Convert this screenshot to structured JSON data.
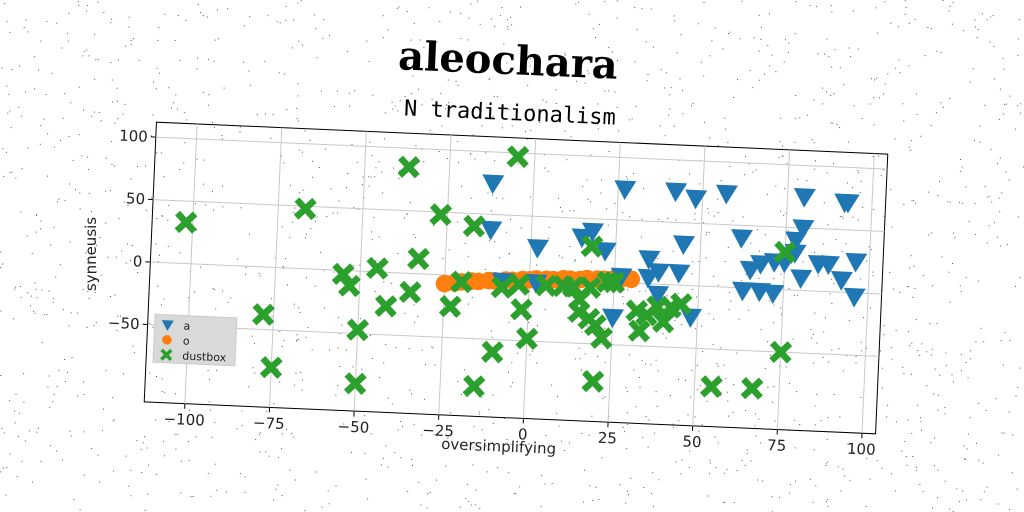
{
  "chart_data": {
    "type": "scatter",
    "title": "aleochara",
    "subtitle": "N traditionalism",
    "xlabel": "oversimplifying",
    "ylabel": "synneusis",
    "xlim": [
      -112,
      104
    ],
    "ylim": [
      -112,
      112
    ],
    "xticks": [
      -100,
      -75,
      -50,
      -25,
      0,
      25,
      50,
      75,
      100
    ],
    "xtick_labels": [
      "−100",
      "−75",
      "−50",
      "−25",
      "0",
      "25",
      "50",
      "75",
      "100"
    ],
    "yticks": [
      -50,
      0,
      50,
      100
    ],
    "ytick_labels": [
      "−50",
      "0",
      "50",
      "100"
    ],
    "grid": true,
    "legend_position": "lower-left",
    "series": [
      {
        "name": "a",
        "marker": "triangle-down",
        "color": "#1f77b4",
        "points": [
          [
            -12,
            75
          ],
          [
            -12,
            38
          ],
          [
            -8,
            -3
          ],
          [
            2,
            25
          ],
          [
            2,
            -3
          ],
          [
            15,
            35
          ],
          [
            18,
            40
          ],
          [
            22,
            25
          ],
          [
            27,
            75
          ],
          [
            27,
            5
          ],
          [
            25,
            -28
          ],
          [
            35,
            20
          ],
          [
            35,
            5
          ],
          [
            38,
            10
          ],
          [
            38,
            -8
          ],
          [
            42,
            75
          ],
          [
            44,
            10
          ],
          [
            45,
            33
          ],
          [
            48,
            70
          ],
          [
            48,
            -25
          ],
          [
            57,
            75
          ],
          [
            62,
            40
          ],
          [
            63,
            -2
          ],
          [
            65,
            15
          ],
          [
            68,
            -2
          ],
          [
            68,
            20
          ],
          [
            72,
            -3
          ],
          [
            72,
            22
          ],
          [
            75,
            22
          ],
          [
            78,
            30
          ],
          [
            78,
            40
          ],
          [
            80,
            10
          ],
          [
            80,
            50
          ],
          [
            80,
            75
          ],
          [
            85,
            22
          ],
          [
            88,
            22
          ],
          [
            92,
            10
          ],
          [
            92,
            72
          ],
          [
            93,
            72
          ],
          [
            96,
            25
          ],
          [
            96,
            -3
          ]
        ]
      },
      {
        "name": "o",
        "marker": "circle",
        "color": "#ff7f0e",
        "points": [
          [
            -25,
            -7
          ],
          [
            -22,
            -6
          ],
          [
            -20,
            -5
          ],
          [
            -17,
            -4
          ],
          [
            -15,
            -4
          ],
          [
            -12,
            -3
          ],
          [
            -10,
            -3
          ],
          [
            -7,
            -2
          ],
          [
            -5,
            -2
          ],
          [
            -2,
            -1
          ],
          [
            0,
            -1
          ],
          [
            2,
            0
          ],
          [
            5,
            0
          ],
          [
            7,
            0
          ],
          [
            10,
            1
          ],
          [
            12,
            1
          ],
          [
            15,
            1
          ],
          [
            17,
            2
          ],
          [
            20,
            2
          ],
          [
            22,
            2
          ],
          [
            25,
            3
          ],
          [
            27,
            3
          ],
          [
            30,
            3
          ]
        ]
      },
      {
        "name": "dustbox",
        "marker": "x",
        "color": "#2ca02c",
        "points": [
          [
            -102,
            33
          ],
          [
            -78,
            -38
          ],
          [
            -75,
            -80
          ],
          [
            -67,
            48
          ],
          [
            -55,
            -3
          ],
          [
            -53,
            -12
          ],
          [
            -50,
            -47
          ],
          [
            -50,
            -90
          ],
          [
            -45,
            3
          ],
          [
            -42,
            -27
          ],
          [
            -37,
            85
          ],
          [
            -35,
            -15
          ],
          [
            -33,
            12
          ],
          [
            -27,
            48
          ],
          [
            -23,
            -25
          ],
          [
            -20,
            -5
          ],
          [
            -17,
            40
          ],
          [
            -15,
            -88
          ],
          [
            -10,
            -60
          ],
          [
            -8,
            -8
          ],
          [
            -5,
            97
          ],
          [
            -3,
            -5
          ],
          [
            -2,
            -25
          ],
          [
            0,
            -48
          ],
          [
            5,
            -5
          ],
          [
            10,
            -5
          ],
          [
            13,
            -5
          ],
          [
            15,
            -15
          ],
          [
            15,
            -25
          ],
          [
            18,
            -5
          ],
          [
            18,
            -30
          ],
          [
            18,
            28
          ],
          [
            20,
            -35
          ],
          [
            20,
            -80
          ],
          [
            22,
            -45
          ],
          [
            23,
            0
          ],
          [
            25,
            0
          ],
          [
            32,
            -22
          ],
          [
            33,
            -38
          ],
          [
            35,
            -25
          ],
          [
            38,
            -18
          ],
          [
            40,
            -30
          ],
          [
            42,
            -18
          ],
          [
            45,
            -15
          ],
          [
            55,
            -80
          ],
          [
            67,
            -80
          ],
          [
            75,
            30
          ],
          [
            75,
            -50
          ]
        ]
      }
    ]
  }
}
